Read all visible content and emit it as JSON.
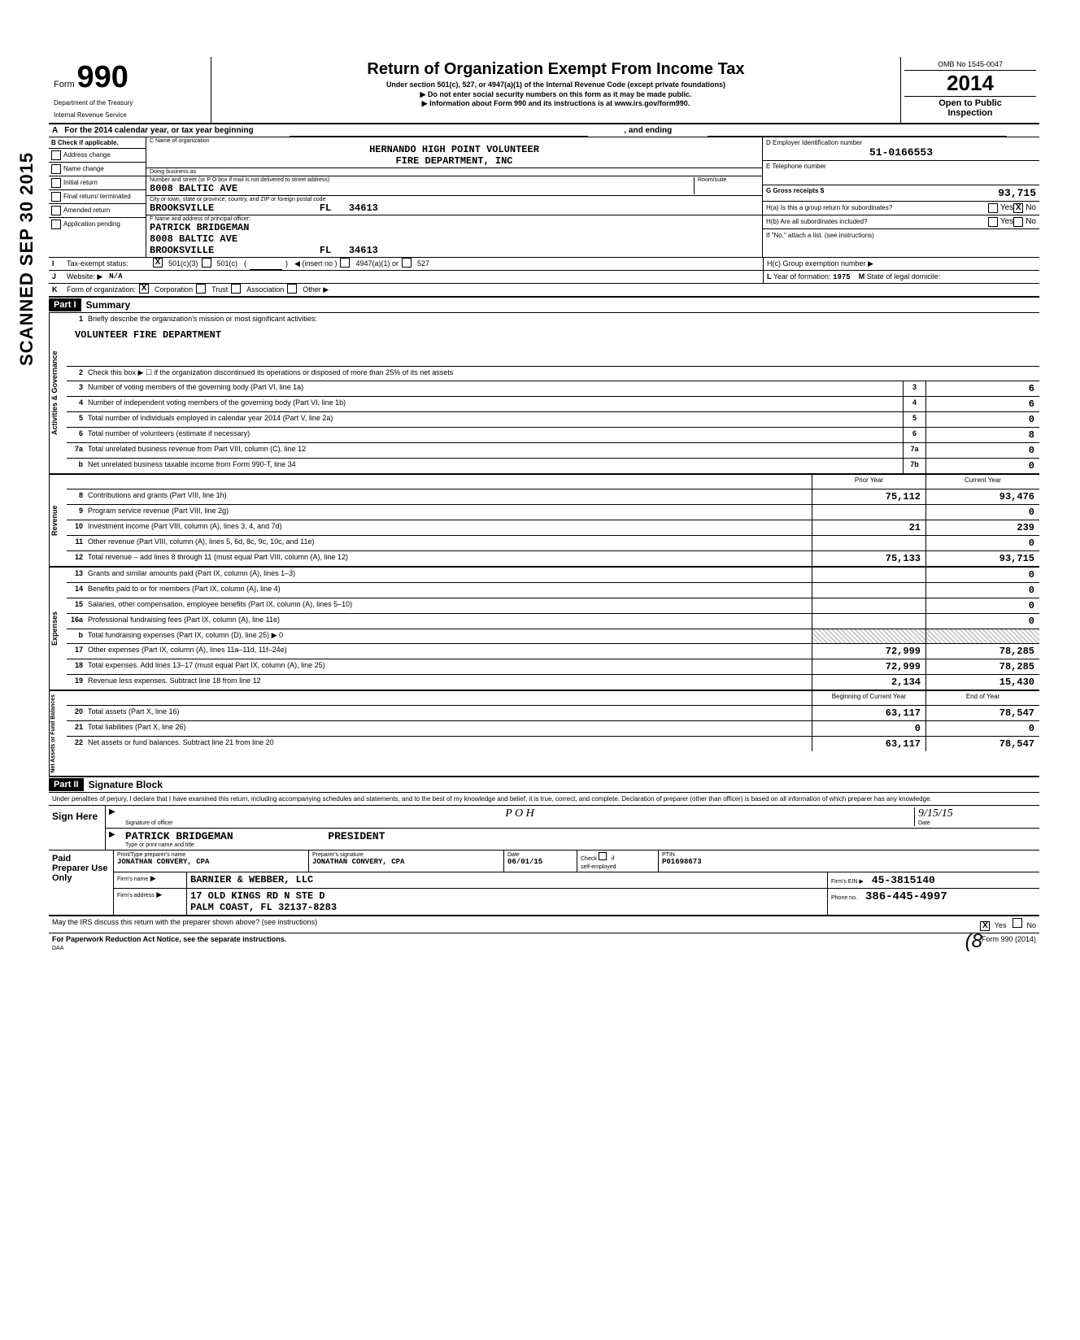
{
  "side_stamp": "SCANNED SEP 30 2015",
  "header": {
    "form_word": "Form",
    "form_number": "990",
    "dept1": "Department of the Treasury",
    "dept2": "Internal Revenue Service",
    "title": "Return of Organization Exempt From Income Tax",
    "subtitle": "Under section 501(c), 527, or 4947(a)(1) of the Internal Revenue Code (except private foundations)",
    "arrow1": "▶ Do not enter social security numbers on this form as it may be made public.",
    "arrow2": "▶ Information about Form 990 and its instructions is at www.irs.gov/form990.",
    "omb": "OMB No 1545-0047",
    "year": "2014",
    "open1": "Open to Public",
    "open2": "Inspection"
  },
  "row_a": {
    "label": "A",
    "text": "For the 2014 calendar year, or tax year beginning",
    "ending": ", and ending"
  },
  "section_b": {
    "label": "B",
    "check_label": "Check if applicable.",
    "items": [
      "Address change",
      "Name change",
      "Initial return",
      "Final return/ terminated",
      "Amended return",
      "Application pending"
    ]
  },
  "section_c": {
    "label_name": "C Name of organization",
    "name1": "HERNANDO HIGH POINT VOLUNTEER",
    "name2": "FIRE DEPARTMENT, INC",
    "dba_label": "Doing business as",
    "addr_label": "Number and street (or P O box if mail is not delivered to street address)",
    "addr": "8008 BALTIC AVE",
    "room_label": "Room/suite",
    "city_label": "City or town, state or province, country, and ZIP or foreign postal code",
    "city": "BROOKSVILLE",
    "state": "FL",
    "zip": "34613",
    "f_label": "F Name and address of principal officer:",
    "officer": "PATRICK BRIDGEMAN",
    "officer_addr": "8008 BALTIC AVE",
    "officer_city": "BROOKSVILLE",
    "officer_state": "FL",
    "officer_zip": "34613"
  },
  "section_d": {
    "label": "D Employer Identification number",
    "ein": "51-0166553"
  },
  "section_e": {
    "label": "E Telephone number"
  },
  "section_g": {
    "label": "G Gross receipts $",
    "value": "93,715"
  },
  "section_h": {
    "ha": "H(a) Is this a group return for subordinates?",
    "ha_no_checked": "X",
    "hb": "H(b) Are all subordinates included?",
    "hb_note": "If \"No,\" attach a list. (see instructions)",
    "hc": "H(c) Group exemption number ▶",
    "yes": "Yes",
    "no": "No"
  },
  "row_i": {
    "label": "I",
    "text": "Tax-exempt status:",
    "opt1": "501(c)(3)",
    "opt1_checked": "X",
    "opt2": "501(c)",
    "opt2_paren": "(",
    "opt2_paren2": ")",
    "insert": "◀ (insert no )",
    "opt3": "4947(a)(1) or",
    "opt4": "527"
  },
  "row_j": {
    "label": "J",
    "text": "Website: ▶",
    "value": "N/A"
  },
  "row_k": {
    "label": "K",
    "text": "Form of organization:",
    "corp_checked": "X",
    "corp": "Corporation",
    "trust": "Trust",
    "assoc": "Association",
    "other": "Other ▶"
  },
  "row_l": {
    "label": "L",
    "text": "Year of formation:",
    "value": "1975",
    "m_label": "M",
    "m_text": "State of legal domicile:"
  },
  "part1": {
    "header": "Part I",
    "title": "Summary",
    "governance_label": "Activities & Governance",
    "revenue_label": "Revenue",
    "expenses_label": "Expenses",
    "netassets_label": "Net Assets or Fund Balances",
    "line1_text": "Briefly describe the organization's mission or most significant activities:",
    "mission": "VOLUNTEER FIRE DEPARTMENT",
    "line2_text": "Check this box ▶ ☐ if the organization discontinued its operations or disposed of more than 25% of its net assets",
    "prior_year": "Prior Year",
    "current_year": "Current Year",
    "begin_year": "Beginning of Current Year",
    "end_year": "End of Year",
    "lines_single": [
      {
        "n": "3",
        "t": "Number of voting members of the governing body (Part VI, line 1a)",
        "box": "3",
        "v": "6"
      },
      {
        "n": "4",
        "t": "Number of independent voting members of the governing body (Part VI, line 1b)",
        "box": "4",
        "v": "6"
      },
      {
        "n": "5",
        "t": "Total number of individuals employed in calendar year 2014 (Part V, line 2a)",
        "box": "5",
        "v": "0"
      },
      {
        "n": "6",
        "t": "Total number of volunteers (estimate if necessary)",
        "box": "6",
        "v": "8"
      },
      {
        "n": "7a",
        "t": "Total unrelated business revenue from Part VIII, column (C), line 12",
        "box": "7a",
        "v": "0"
      },
      {
        "n": "b",
        "t": "Net unrelated business taxable income from Form 990-T, line 34",
        "box": "7b",
        "v": "0"
      }
    ],
    "lines_double": [
      {
        "n": "8",
        "t": "Contributions and grants (Part VIII, line 1h)",
        "p": "75,112",
        "c": "93,476"
      },
      {
        "n": "9",
        "t": "Program service revenue (Part VIII, line 2g)",
        "p": "",
        "c": "0"
      },
      {
        "n": "10",
        "t": "Investment income (Part VIII, column (A), lines 3, 4, and 7d)",
        "p": "21",
        "c": "239"
      },
      {
        "n": "11",
        "t": "Other revenue (Part VIII, column (A), lines 5, 6d, 8c, 9c, 10c, and 11e)",
        "p": "",
        "c": "0"
      },
      {
        "n": "12",
        "t": "Total revenue – add lines 8 through 11 (must equal Part VIII, column (A), line 12)",
        "p": "75,133",
        "c": "93,715"
      },
      {
        "n": "13",
        "t": "Grants and similar amounts paid (Part IX, column (A), lines 1–3)",
        "p": "",
        "c": "0"
      },
      {
        "n": "14",
        "t": "Benefits paid to or for members (Part IX, column (A), line 4)",
        "p": "",
        "c": "0"
      },
      {
        "n": "15",
        "t": "Salaries, other compensation, employee benefits (Part IX, column (A), lines 5–10)",
        "p": "",
        "c": "0"
      },
      {
        "n": "16a",
        "t": "Professional fundraising fees (Part IX, column (A), line 11e)",
        "p": "",
        "c": "0"
      },
      {
        "n": "b",
        "t": "Total fundraising expenses (Part IX, column (D), line 25) ▶                                        0",
        "p": "shaded",
        "c": "shaded"
      },
      {
        "n": "17",
        "t": "Other expenses (Part IX, column (A), lines 11a–11d, 11f–24e)",
        "p": "72,999",
        "c": "78,285"
      },
      {
        "n": "18",
        "t": "Total expenses. Add lines 13–17 (must equal Part IX, column (A), line 25)",
        "p": "72,999",
        "c": "78,285"
      },
      {
        "n": "19",
        "t": "Revenue less expenses. Subtract line 18 from line 12",
        "p": "2,134",
        "c": "15,430"
      }
    ],
    "lines_assets": [
      {
        "n": "20",
        "t": "Total assets (Part X, line 16)",
        "p": "63,117",
        "c": "78,547"
      },
      {
        "n": "21",
        "t": "Total liabilities (Part X, line 26)",
        "p": "0",
        "c": "0"
      },
      {
        "n": "22",
        "t": "Net assets or fund balances. Subtract line 21 from line 20",
        "p": "63,117",
        "c": "78,547"
      }
    ]
  },
  "part2": {
    "header": "Part II",
    "title": "Signature Block",
    "penalty": "Under penalties of perjury, I declare that I have examined this return, including accompanying schedules and statements, and to the best of my knowledge and belief, it is true, correct, and complete. Declaration of preparer (other than officer) is based on all information of which preparer has any knowledge.",
    "sign_here": "Sign Here",
    "sig_label": "Signature of officer",
    "date_label": "Date",
    "date_value": "9/15/15",
    "name_label": "Type or print name and title",
    "name_value": "PATRICK BRIDGEMAN",
    "title_value": "PRESIDENT",
    "signature_scrawl": "P O H"
  },
  "preparer": {
    "left": "Paid Preparer Use Only",
    "print_label": "Print/Type preparer's name",
    "print_value": "JONATHAN CONVERY, CPA",
    "sig_label": "Preparer's signature",
    "sig_value": "JONATHAN CONVERY, CPA",
    "date_label": "Date",
    "date_value": "06/01/15",
    "check_label": "Check",
    "self_emp": "self-employed",
    "if_label": "if",
    "ptin_label": "PTIN",
    "ptin_value": "P01698673",
    "firm_label": "Firm's name",
    "firm_value": "BARNIER & WEBBER, LLC",
    "ein_label": "Firm's EIN ▶",
    "ein_value": "45-3815140",
    "addr_label": "Firm's address",
    "addr1": "17 OLD KINGS RD N STE D",
    "addr2": "PALM COAST, FL  32137-8283",
    "phwith_label": "Phone no.",
    "phone_value": "386-445-4997"
  },
  "footer": {
    "discuss": "May the IRS discuss this return with the preparer shown above? (see instructions)",
    "yes": "Yes",
    "yes_checked": "X",
    "no": "No",
    "paperwork": "For Paperwork Reduction Act Notice, see the separate instructions.",
    "daa": "DAA",
    "form_note": "Form 990 (2014)"
  },
  "initial": "(8"
}
